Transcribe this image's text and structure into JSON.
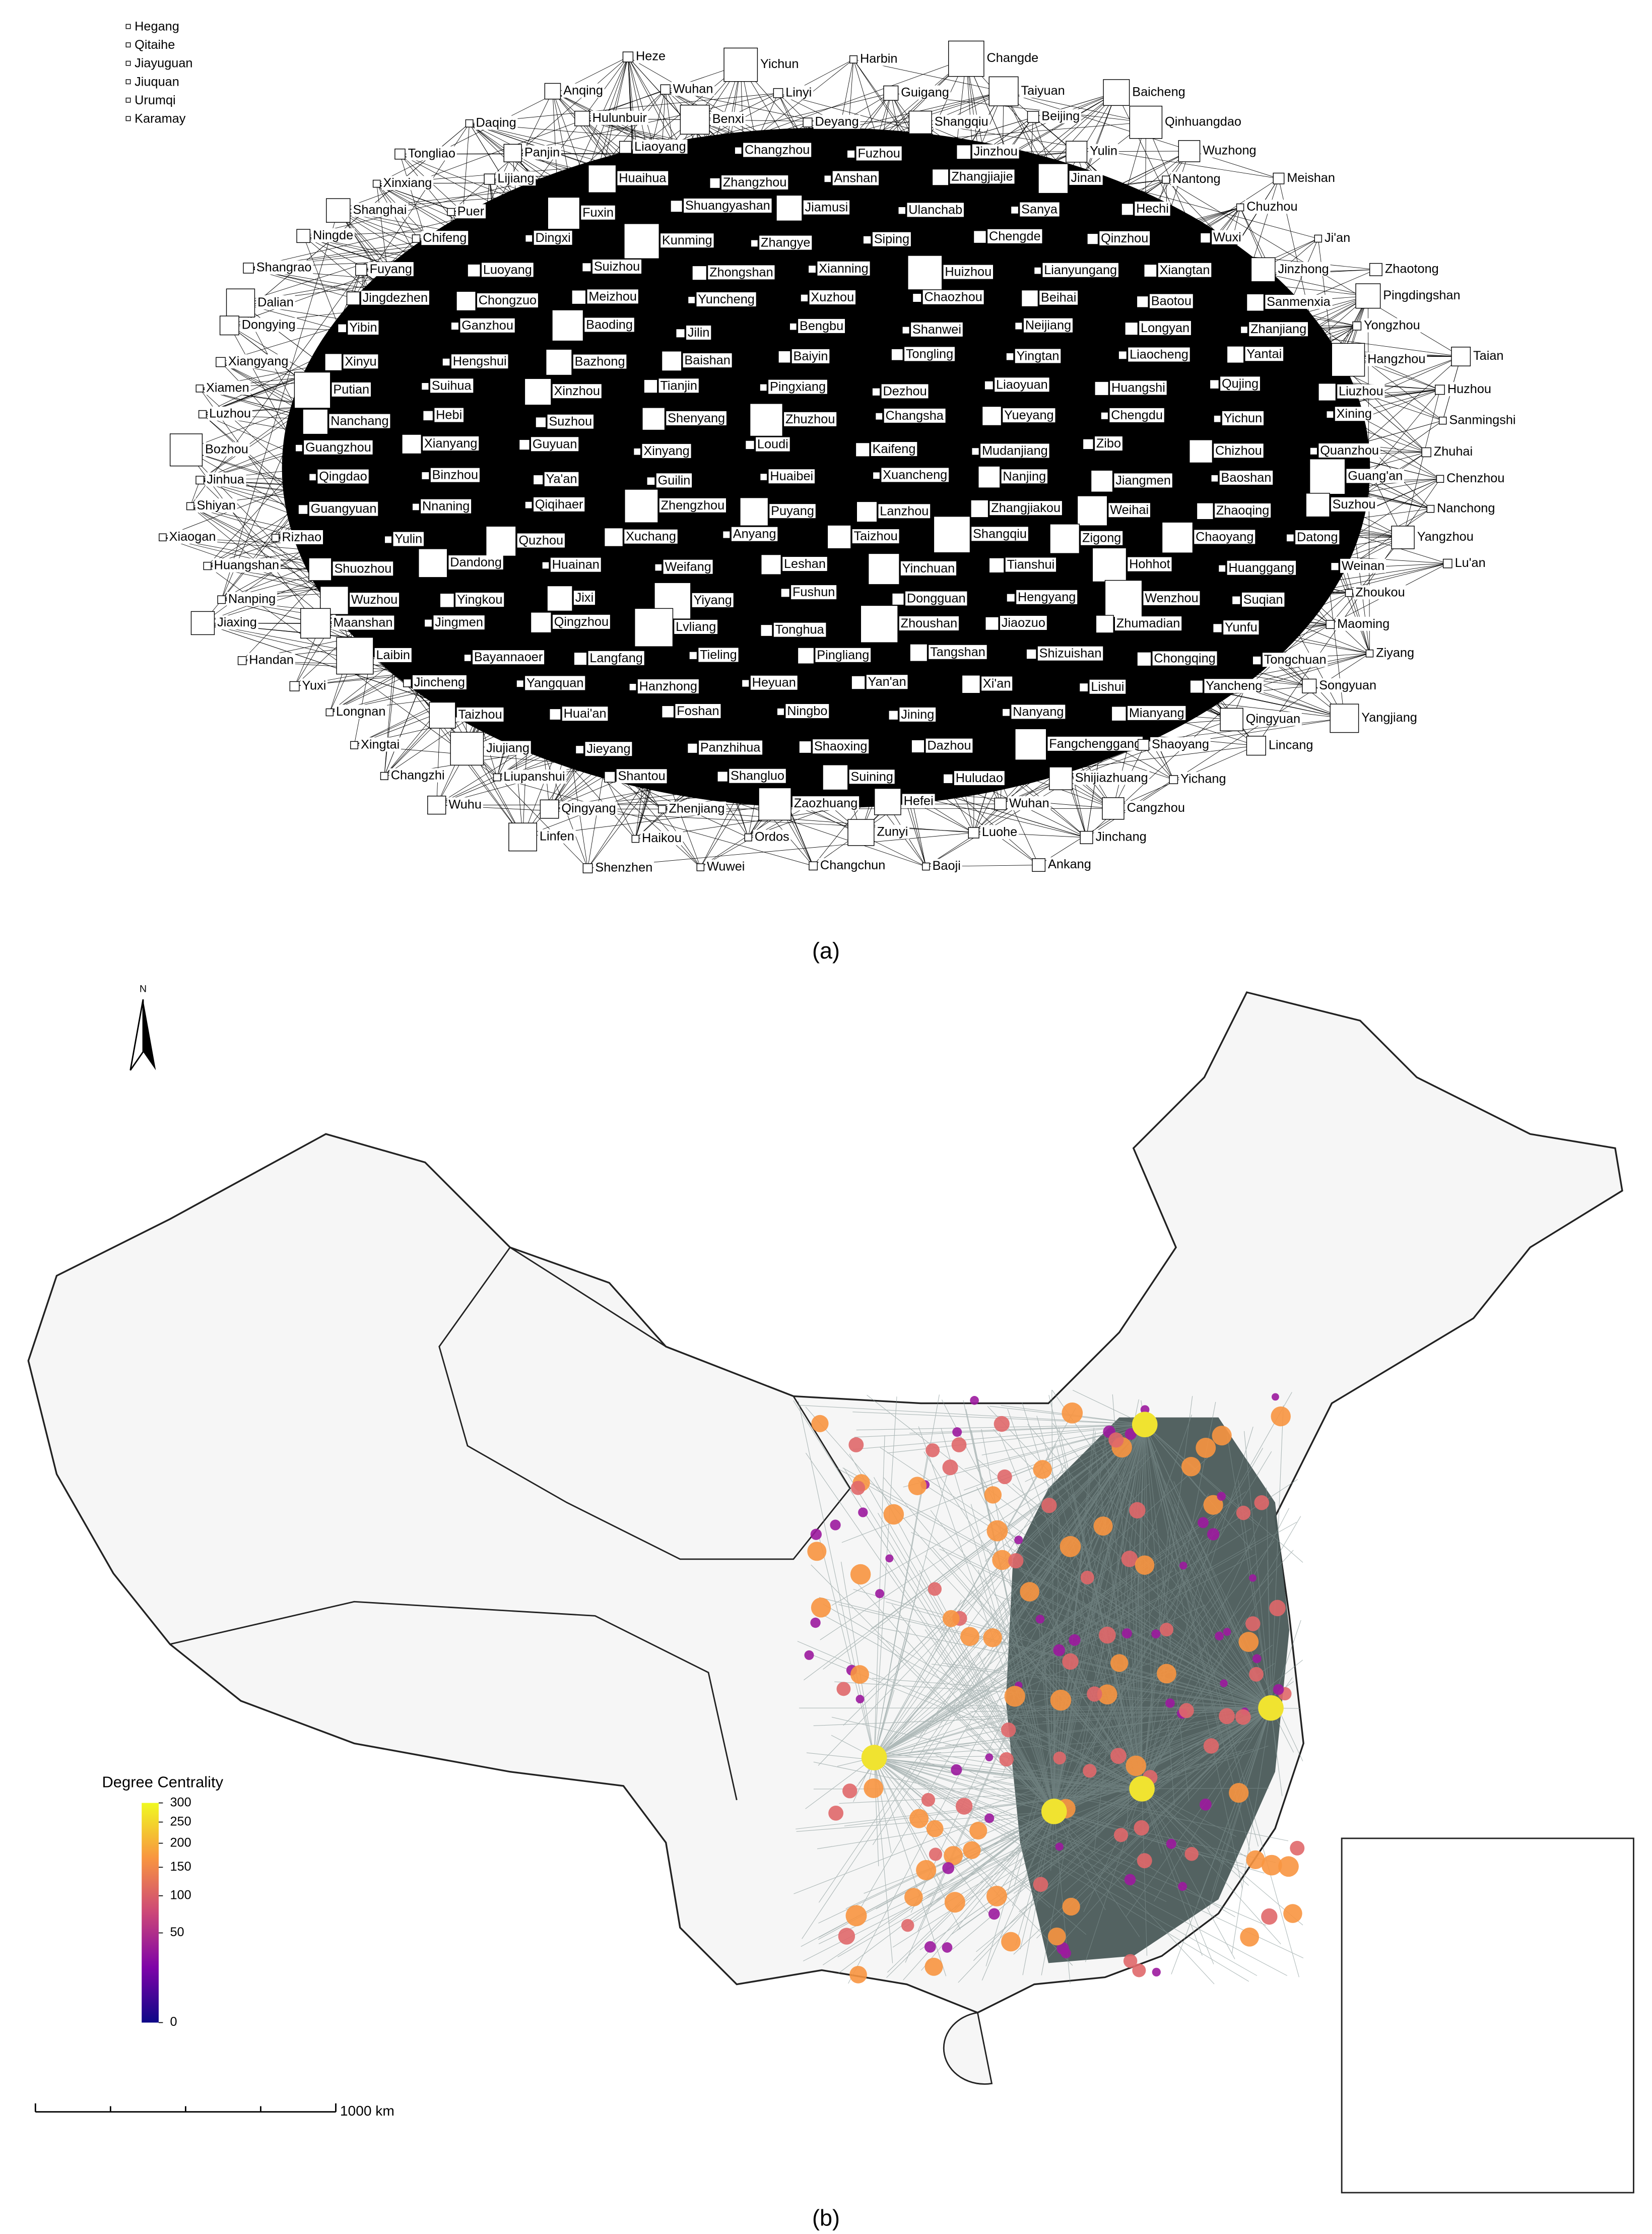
{
  "panel_a": {
    "label": "(a)",
    "isolated": [
      "Hegang",
      "Qitaihe",
      "Jiayuguan",
      "Jiuquan",
      "Urumqi",
      "Karamay"
    ],
    "nodes": [
      "Heze",
      "Yichun",
      "Harbin",
      "Changde",
      "Anqing",
      "Wuhan",
      "Linyi",
      "Guigang",
      "Taiyuan",
      "Baicheng",
      "Daqing",
      "Hulunbuir",
      "Benxi",
      "Deyang",
      "Shangqiu",
      "Beijing",
      "Qinhuangdao",
      "Tongliao",
      "Panjin",
      "Liaoyang",
      "Changzhou",
      "Fuzhou",
      "Jinzhou",
      "Yulin",
      "Wuzhong",
      "Xinxiang",
      "Lijiang",
      "Huaihua",
      "Zhangzhou",
      "Anshan",
      "Zhangjiajie",
      "Jinan",
      "Nantong",
      "Meishan",
      "Shanghai",
      "Puer",
      "Fuxin",
      "Shuangyashan",
      "Jiamusi",
      "Ulanchab",
      "Sanya",
      "Hechi",
      "Chuzhou",
      "Ningde",
      "Chifeng",
      "Dingxi",
      "Kunming",
      "Zhangye",
      "Siping",
      "Chengde",
      "Qinzhou",
      "Wuxi",
      "Ji'an",
      "Shangrao",
      "Fuyang",
      "Luoyang",
      "Suizhou",
      "Zhongshan",
      "Xianning",
      "Huizhou",
      "Lianyungang",
      "Xiangtan",
      "Jinzhong",
      "Zhaotong",
      "Dalian",
      "Jingdezhen",
      "Chongzuo",
      "Meizhou",
      "Yuncheng",
      "Xuzhou",
      "Chaozhou",
      "Beihai",
      "Baotou",
      "Sanmenxia",
      "Pingdingshan",
      "Dongying",
      "Yibin",
      "Ganzhou",
      "Baoding",
      "Jilin",
      "Bengbu",
      "Shanwei",
      "Neijiang",
      "Longyan",
      "Zhanjiang",
      "Yongzhou",
      "Xiangyang",
      "Xinyu",
      "Hengshui",
      "Bazhong",
      "Baishan",
      "Baiyin",
      "Tongling",
      "Yingtan",
      "Liaocheng",
      "Yantai",
      "Hangzhou",
      "Taian",
      "Xiamen",
      "Putian",
      "Suihua",
      "Xinzhou",
      "Tianjin",
      "Pingxiang",
      "Dezhou",
      "Liaoyuan",
      "Huangshi",
      "Qujing",
      "Liuzhou",
      "Huzhou",
      "Luzhou",
      "Nanchang",
      "Hebi",
      "Suzhou",
      "Shenyang",
      "Zhuzhou",
      "Changsha",
      "Yueyang",
      "Chengdu",
      "Yichun",
      "Xining",
      "Sanmingshi",
      "Bozhou",
      "Guangzhou",
      "Xianyang",
      "Guyuan",
      "Xinyang",
      "Loudi",
      "Kaifeng",
      "Mudanjiang",
      "Zibo",
      "Chizhou",
      "Quanzhou",
      "Zhuhai",
      "Jinhua",
      "Qingdao",
      "Binzhou",
      "Ya'an",
      "Guilin",
      "Huaibei",
      "Xuancheng",
      "Nanjing",
      "Jiangmen",
      "Baoshan",
      "Guang'an",
      "Chenzhou",
      "Shiyan",
      "Guangyuan",
      "Nnaning",
      "Qiqihaer",
      "Zhengzhou",
      "Puyang",
      "Lanzhou",
      "Zhangjiakou",
      "Weihai",
      "Zhaoqing",
      "Suzhou",
      "Nanchong",
      "Xiaogan",
      "Rizhao",
      "Yulin",
      "Quzhou",
      "Xuchang",
      "Anyang",
      "Taizhou",
      "Shangqiu",
      "Zigong",
      "Chaoyang",
      "Datong",
      "Yangzhou",
      "Huangshan",
      "Shuozhou",
      "Dandong",
      "Huainan",
      "Weifang",
      "Leshan",
      "Yinchuan",
      "Tianshui",
      "Hohhot",
      "Huanggang",
      "Weinan",
      "Lu'an",
      "Nanping",
      "Wuzhou",
      "Yingkou",
      "Jixi",
      "Yiyang",
      "Fushun",
      "Dongguan",
      "Hengyang",
      "Wenzhou",
      "Suqian",
      "Zhoukou",
      "Jiaxing",
      "Maanshan",
      "Jingmen",
      "Qingzhou",
      "Lvliang",
      "Tonghua",
      "Zhoushan",
      "Jiaozuo",
      "Zhumadian",
      "Yunfu",
      "Maoming",
      "Handan",
      "Laibin",
      "Bayannaoer",
      "Langfang",
      "Tieling",
      "Pingliang",
      "Tangshan",
      "Shizuishan",
      "Chongqing",
      "Tongchuan",
      "Ziyang",
      "Yuxi",
      "Jincheng",
      "Yangquan",
      "Hanzhong",
      "Heyuan",
      "Yan'an",
      "Xi'an",
      "Lishui",
      "Yancheng",
      "Songyuan",
      "Longnan",
      "Taizhou",
      "Huai'an",
      "Foshan",
      "Ningbo",
      "Jining",
      "Nanyang",
      "Mianyang",
      "Qingyuan",
      "Yangjiang",
      "Xingtai",
      "Jiujiang",
      "Jieyang",
      "Panzhihua",
      "Shaoxing",
      "Dazhou",
      "Fangchenggang",
      "Shaoyang",
      "Lincang",
      "Changzhi",
      "Liupanshui",
      "Shantou",
      "Shangluo",
      "Suining",
      "Huludao",
      "Shijiazhuang",
      "Yichang",
      "Wuhu",
      "Qingyang",
      "Zhenjiang",
      "Zaozhuang",
      "Hefei",
      "Wuhan",
      "Cangzhou",
      "Linfen",
      "Haikou",
      "Ordos",
      "Zunyi",
      "Luohe",
      "Jinchang",
      "Shenzhen",
      "Wuwei",
      "Changchun",
      "Baoji",
      "Ankang"
    ]
  },
  "panel_b": {
    "label": "(b)",
    "north": "N",
    "scale_bar": "1000 km",
    "legend": {
      "title": "Degree Centrality",
      "scale": "sqrt",
      "ticks": [
        0,
        50,
        100,
        150,
        200,
        250,
        300
      ],
      "colors": [
        "#0d0887",
        "#7e03a8",
        "#cc4778",
        "#f89540",
        "#f0f921"
      ]
    }
  }
}
